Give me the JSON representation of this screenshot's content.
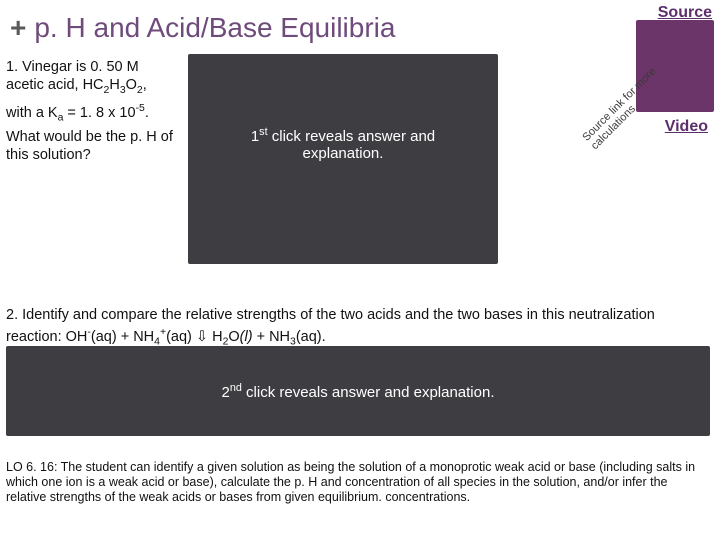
{
  "title": {
    "plus": "+",
    "text": "p. H and Acid/Base Equilibria"
  },
  "links": {
    "source": "Source",
    "video": "Video"
  },
  "diagonal": {
    "line1": "Source link for more",
    "line2": "calculations"
  },
  "q1": {
    "l1": "1. Vinegar is 0. 50 M",
    "l2a": "acetic acid, HC",
    "l2b": "H",
    "l2c": "O",
    "l2d": ",",
    "l3a": "with a K",
    "l3b": " = 1. 8 x 10",
    "l3c": ".",
    "l4": "What would be the p. H of",
    "l5": "this solution?"
  },
  "reveal1": {
    "sup": "1",
    "supord": "st",
    "rest": " click reveals answer and explanation."
  },
  "q2": {
    "pre": "2. Identify and compare the relative strengths of the two acids and the two bases in this neutralization reaction:  OH",
    "aq1": "(aq)",
    "plus1": " + NH",
    "aq2": "(aq)",
    "arrow": " ⇩ ",
    "h2o": " H",
    "o": "O",
    "l": "(l)",
    "plus2": " + NH",
    "aq3": "(aq)",
    "dot": "."
  },
  "reveal2": {
    "sup": "2",
    "supord": "nd",
    "rest": " click reveals answer and explanation."
  },
  "lo": "LO 6. 16: The student can identify a given solution as being the solution of a monoprotic weak acid or base (including salts in which one ion is a weak acid or base), calculate the p. H and concentration of all species in the solution, and/or infer the relative strengths of the weak acids or bases from given equilibrium. concentrations.",
  "colors": {
    "purple_box": "#6b3569",
    "title_color": "#6e4b7a",
    "dark_box": "#3e3e42"
  }
}
